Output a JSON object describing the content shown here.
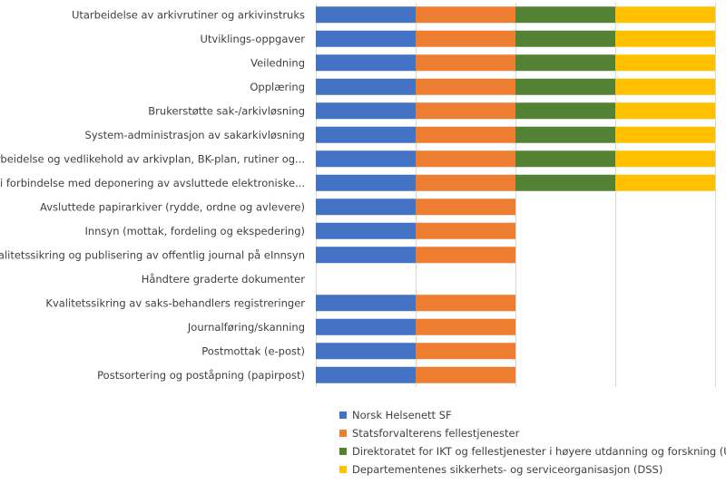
{
  "chart_data": {
    "type": "bar",
    "orientation": "horizontal",
    "stacked": true,
    "title": "",
    "xlabel": "",
    "ylabel": "",
    "xlim": [
      0,
      4
    ],
    "grid": true,
    "legend_position": "bottom",
    "categories": [
      "Utarbeidelse av arkivrutiner og arkivinstruks",
      "Utviklings-oppgaver",
      "Veiledning",
      "Opplæring",
      "Brukerstøtte sak-/arkivløsning",
      "System-administrasjon av sakarkivløsning",
      "Utarbeidelse og vedlikehold av arkivplan, BK-plan, rutiner og...",
      "Arbeid i forbindelse med deponering av avsluttede elektroniske...",
      "Avsluttede papirarkiver (rydde, ordne og avlevere)",
      "Innsyn (mottak, fordeling og ekspedering)",
      "Kvalitetssikring og publisering av offentlig journal på eInnsyn",
      "Håndtere graderte dokumenter",
      "Kvalitetssikring av saks-behandlers registreringer",
      "Journalføring/skanning",
      "Postmottak (e-post)",
      "Postsortering og poståpning (papirpost)"
    ],
    "series": [
      {
        "name": "Norsk Helsenett SF",
        "color": "#4472c4",
        "values": [
          1,
          1,
          1,
          1,
          1,
          1,
          1,
          1,
          1,
          1,
          1,
          0,
          1,
          1,
          1,
          1
        ]
      },
      {
        "name": "Statsforvalterens fellestjenester",
        "color": "#ed7d31",
        "values": [
          1,
          1,
          1,
          1,
          1,
          1,
          1,
          1,
          1,
          1,
          1,
          0,
          1,
          1,
          1,
          1
        ]
      },
      {
        "name": "Direktoratet for IKT og fellestjenester i høyere utdanning og forskning (Unit)",
        "color": "#548235",
        "values": [
          1,
          1,
          1,
          1,
          1,
          1,
          1,
          1,
          0,
          0,
          0,
          0,
          0,
          0,
          0,
          0
        ]
      },
      {
        "name": "Departementenes sikkerhets- og serviceorganisasjon (DSS)",
        "color": "#ffc000",
        "values": [
          1,
          1,
          1,
          1,
          1,
          1,
          1,
          1,
          0,
          0,
          0,
          0,
          0,
          0,
          0,
          0
        ]
      }
    ]
  }
}
